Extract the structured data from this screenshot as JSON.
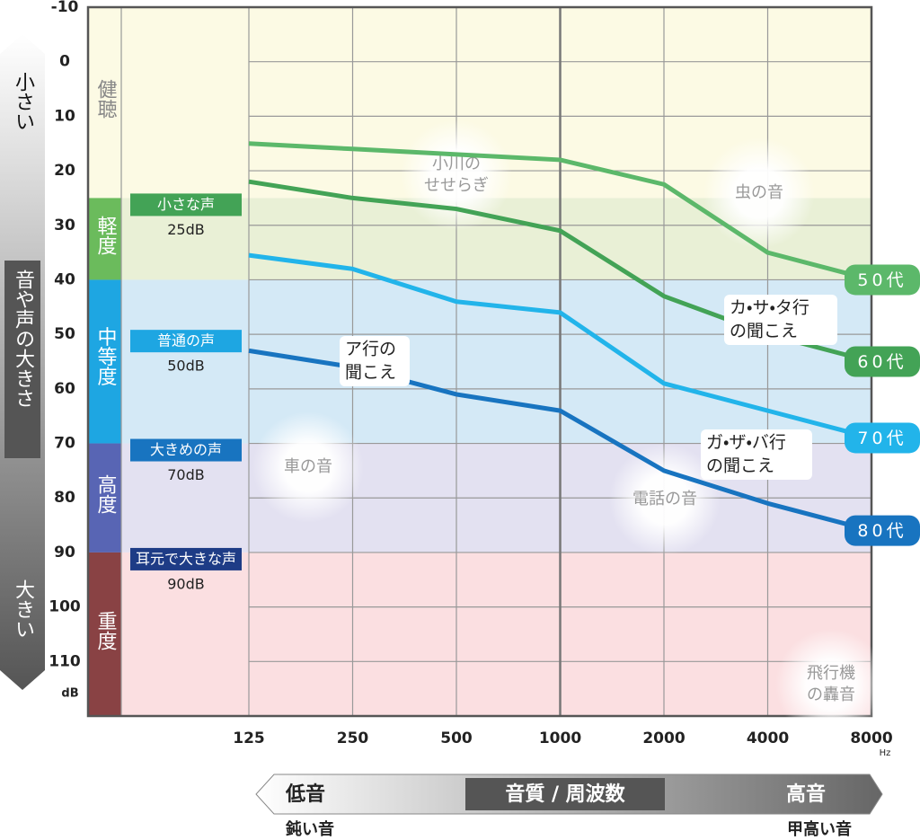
{
  "chart_data": {
    "type": "line",
    "x": [
      125,
      250,
      500,
      1000,
      2000,
      4000,
      8000
    ],
    "xlim": [
      125,
      8000
    ],
    "xticks": [
      125,
      250,
      500,
      1000,
      2000,
      4000,
      8000
    ],
    "x_scale": "log",
    "x_unit": "Hz",
    "ylim": [
      -10,
      120
    ],
    "yticks": [
      -10,
      0,
      10,
      20,
      30,
      40,
      50,
      60,
      70,
      80,
      90,
      100,
      110
    ],
    "y_unit": "dB",
    "y_inverted": true,
    "grid": true,
    "series": [
      {
        "name": "50代",
        "color": "#5cb86a",
        "values": [
          15,
          16,
          17,
          18,
          22.5,
          35,
          40
        ]
      },
      {
        "name": "60代",
        "color": "#43a356",
        "values": [
          22,
          25,
          27,
          31,
          43,
          50,
          55
        ]
      },
      {
        "name": "70代",
        "color": "#22b4ea",
        "values": [
          35.5,
          38,
          44,
          46,
          59,
          64,
          69
        ]
      },
      {
        "name": "80代",
        "color": "#1874c0",
        "values": [
          53,
          56,
          61,
          64,
          75,
          81,
          86
        ]
      }
    ],
    "bands": [
      {
        "label": "健聴",
        "from": -10,
        "to": 25,
        "color": "#fcfae4",
        "strong": "#fcfae4",
        "text": "#888"
      },
      {
        "label": "軽度",
        "from": 25,
        "to": 40,
        "color": "#e9f0d6",
        "strong": "#6bbb5c",
        "text": "#fff"
      },
      {
        "label": "中等度",
        "from": 40,
        "to": 70,
        "color": "#d4e9f6",
        "strong": "#1ea6e2",
        "text": "#fff"
      },
      {
        "label": "高度",
        "from": 70,
        "to": 90,
        "color": "#e3e1f1",
        "strong": "#5865b4",
        "text": "#fff"
      },
      {
        "label": "重度",
        "from": 90,
        "to": 120,
        "color": "#fbdfe1",
        "strong": "#894244",
        "text": "#fff"
      }
    ],
    "voice_levels": [
      {
        "name": "小さな声",
        "label": "25dB",
        "value": 25,
        "color": "#43a356"
      },
      {
        "name": "普通の声",
        "label": "50dB",
        "value": 50,
        "color": "#1ea6e2"
      },
      {
        "name": "大きめの声",
        "label": "70dB",
        "value": 70,
        "color": "#1874c0"
      },
      {
        "name": "耳元で大きな声",
        "label": "90dB",
        "value": 90,
        "color": "#1e3c86"
      }
    ],
    "callouts": [
      {
        "lines": [
          "ア行の",
          "聞こえ"
        ]
      },
      {
        "lines": [
          "カ・サ・タ行",
          "の聞こえ"
        ]
      },
      {
        "lines": [
          "ガ・ザ・バ行",
          "の聞こえ"
        ]
      }
    ],
    "sounds": [
      {
        "lines": [
          "小川の",
          "せせらぎ"
        ]
      },
      {
        "lines": [
          "虫の音"
        ]
      },
      {
        "lines": [
          "車の音"
        ]
      },
      {
        "lines": [
          "電話の音"
        ]
      },
      {
        "lines": [
          "飛行機",
          "の轟音"
        ]
      }
    ],
    "loudness_axis": {
      "top": "小さい",
      "middle": "音や声の大きさ",
      "bottom": "大きい"
    },
    "pitch_axis": {
      "left": "低音",
      "middle": "音質 / 周波数",
      "right": "高音",
      "left_note": "鈍い音",
      "right_note": "甲高い音"
    }
  }
}
